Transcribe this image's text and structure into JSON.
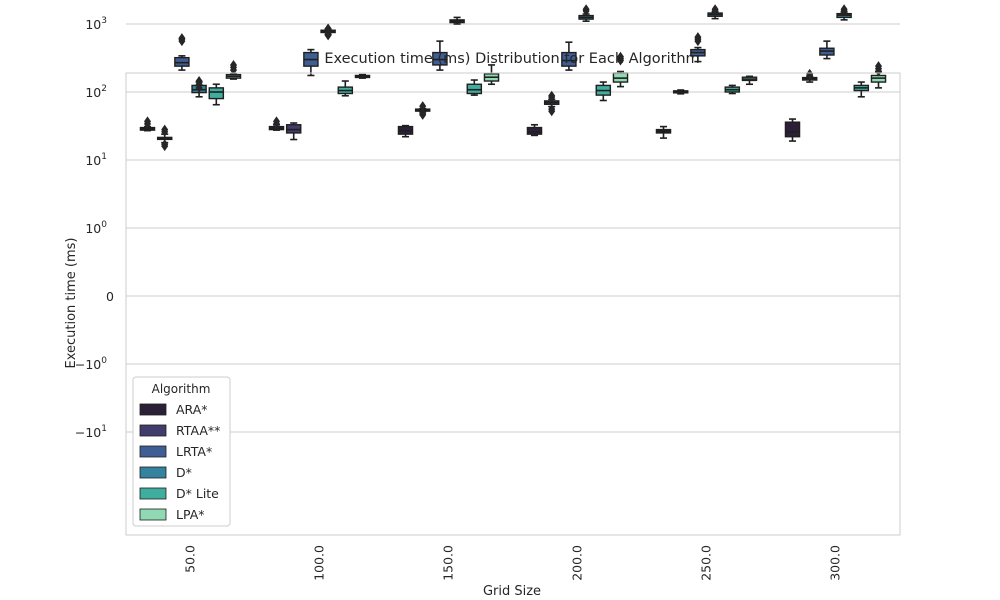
{
  "chart_data": {
    "type": "box",
    "title": "Execution time (ms) Distribution for Each Algorithm",
    "xlabel": "Grid Size",
    "ylabel": "Execution time (ms)",
    "yscale": "symlog",
    "grid": "horizontal",
    "categories": [
      "50.0",
      "100.0",
      "150.0",
      "200.0",
      "250.0",
      "300.0"
    ],
    "y_ticks": [
      {
        "value": 1000,
        "base": "10",
        "exp": "3"
      },
      {
        "value": 100,
        "base": "10",
        "exp": "2"
      },
      {
        "value": 10,
        "base": "10",
        "exp": "1"
      },
      {
        "value": 1,
        "base": "10",
        "exp": "0"
      },
      {
        "value": 0,
        "base": "0",
        "exp": ""
      },
      {
        "value": -1,
        "base": "−10",
        "exp": "0"
      },
      {
        "value": -10,
        "base": "−10",
        "exp": "1"
      }
    ],
    "legend": {
      "title": "Algorithm",
      "position": "lower-left"
    },
    "series": [
      {
        "name": "ARA*",
        "color": "#2c2038",
        "boxes": [
          {
            "min": 27,
            "q1": 27.5,
            "median": 28.5,
            "q3": 30,
            "max": 31,
            "outliers": [
              34,
              37
            ]
          },
          {
            "min": 27.5,
            "q1": 28,
            "median": 29,
            "q3": 31,
            "max": 33,
            "outliers": [
              34,
              37
            ]
          },
          {
            "min": 22,
            "q1": 24,
            "median": 27,
            "q3": 31,
            "max": 32,
            "outliers": []
          },
          {
            "min": 23,
            "q1": 24,
            "median": 26,
            "q3": 30,
            "max": 33,
            "outliers": []
          },
          {
            "min": 21,
            "q1": 25,
            "median": 26.5,
            "q3": 28,
            "max": 31,
            "outliers": []
          },
          {
            "min": 19,
            "q1": 22,
            "median": 26,
            "q3": 36,
            "max": 40,
            "outliers": []
          }
        ]
      },
      {
        "name": "RTAA**",
        "color": "#403c6c",
        "boxes": [
          {
            "min": 18,
            "q1": 20.5,
            "median": 21,
            "q3": 21.5,
            "max": 24,
            "outliers": [
              16,
              17,
              26,
              28
            ]
          },
          {
            "min": 20,
            "q1": 25,
            "median": 28,
            "q3": 33,
            "max": 35,
            "outliers": []
          },
          {
            "min": 51,
            "q1": 53,
            "median": 54,
            "q3": 56,
            "max": 57,
            "outliers": [
              46,
              48,
              62
            ]
          },
          {
            "min": 61,
            "q1": 66,
            "median": 70,
            "q3": 74,
            "max": 78,
            "outliers": [
              52,
              56,
              84,
              88
            ]
          },
          {
            "min": 94,
            "q1": 98,
            "median": 101,
            "q3": 104,
            "max": 107,
            "outliers": []
          },
          {
            "min": 140,
            "q1": 150,
            "median": 158,
            "q3": 163,
            "max": 168,
            "outliers": [
              175,
              185
            ]
          }
        ]
      },
      {
        "name": "LRTA*",
        "color": "#3f5f94",
        "boxes": [
          {
            "min": 210,
            "q1": 240,
            "median": 270,
            "q3": 320,
            "max": 340,
            "outliers": [
              560,
              600,
              620
            ]
          },
          {
            "min": 175,
            "q1": 240,
            "median": 300,
            "q3": 380,
            "max": 420,
            "outliers": []
          },
          {
            "min": 210,
            "q1": 250,
            "median": 300,
            "q3": 380,
            "max": 560,
            "outliers": []
          },
          {
            "min": 210,
            "q1": 240,
            "median": 290,
            "q3": 380,
            "max": 540,
            "outliers": []
          },
          {
            "min": 280,
            "q1": 340,
            "median": 380,
            "q3": 420,
            "max": 450,
            "outliers": [
              560,
              600,
              640
            ]
          },
          {
            "min": 310,
            "q1": 350,
            "median": 400,
            "q3": 440,
            "max": 560,
            "outliers": []
          }
        ]
      },
      {
        "name": "D*",
        "color": "#35829e",
        "boxes": [
          {
            "min": 85,
            "q1": 98,
            "median": 108,
            "q3": 125,
            "max": 140,
            "outliers": [
              115,
              130,
              145
            ]
          },
          {
            "min": 700,
            "q1": 750,
            "median": 780,
            "q3": 810,
            "max": 840,
            "outliers": [
              680,
              720,
              860
            ]
          },
          {
            "min": 1000,
            "q1": 1050,
            "median": 1100,
            "q3": 1150,
            "max": 1250,
            "outliers": []
          },
          {
            "min": 1100,
            "q1": 1180,
            "median": 1250,
            "q3": 1330,
            "max": 1400,
            "outliers": [
              1550,
              1650
            ]
          },
          {
            "min": 1200,
            "q1": 1300,
            "median": 1380,
            "q3": 1450,
            "max": 1500,
            "outliers": [
              1550,
              1650
            ]
          },
          {
            "min": 1150,
            "q1": 1250,
            "median": 1350,
            "q3": 1420,
            "max": 1500,
            "outliers": [
              1550,
              1650
            ]
          }
        ]
      },
      {
        "name": "D* Lite",
        "color": "#40ae9f",
        "boxes": [
          {
            "min": 65,
            "q1": 80,
            "median": 100,
            "q3": 115,
            "max": 130,
            "outliers": []
          },
          {
            "min": 88,
            "q1": 95,
            "median": 105,
            "q3": 118,
            "max": 145,
            "outliers": []
          },
          {
            "min": 90,
            "q1": 95,
            "median": 108,
            "q3": 130,
            "max": 150,
            "outliers": []
          },
          {
            "min": 75,
            "q1": 90,
            "median": 105,
            "q3": 125,
            "max": 140,
            "outliers": []
          },
          {
            "min": 95,
            "q1": 100,
            "median": 108,
            "q3": 118,
            "max": 125,
            "outliers": []
          },
          {
            "min": 85,
            "q1": 105,
            "median": 115,
            "q3": 125,
            "max": 140,
            "outliers": []
          }
        ]
      },
      {
        "name": "LPA*",
        "color": "#91d9b3",
        "boxes": [
          {
            "min": 155,
            "q1": 160,
            "median": 170,
            "q3": 180,
            "max": 185,
            "outliers": [
              210,
              230,
              250
            ]
          },
          {
            "min": 160,
            "q1": 165,
            "median": 170,
            "q3": 175,
            "max": 180,
            "outliers": []
          },
          {
            "min": 130,
            "q1": 145,
            "median": 165,
            "q3": 185,
            "max": 250,
            "outliers": []
          },
          {
            "min": 120,
            "q1": 140,
            "median": 160,
            "q3": 190,
            "max": 200,
            "outliers": [
              290,
              310,
              330
            ]
          },
          {
            "min": 130,
            "q1": 148,
            "median": 155,
            "q3": 165,
            "max": 170,
            "outliers": []
          },
          {
            "min": 115,
            "q1": 140,
            "median": 160,
            "q3": 175,
            "max": 200,
            "outliers": [
              200,
              220,
              240
            ]
          }
        ]
      }
    ]
  }
}
